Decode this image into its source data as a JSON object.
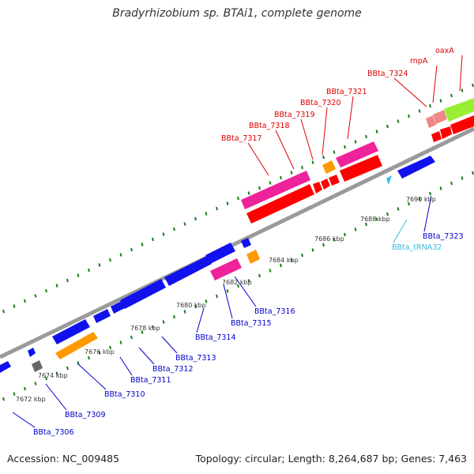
{
  "title": "Bradyrhizobium sp. BTAi1, complete genome",
  "footer": {
    "accession": "Accession: NC_009485",
    "summary": "Topology: circular; Length: 8,264,687 bp; Genes: 7,463"
  },
  "colors": {
    "backbone": "#9a9a9a",
    "tick": "#1a7a1a",
    "blue_label": "#0000cc",
    "red_label": "#dd0000",
    "cyan_label": "#33bbdd",
    "red_gene": "#ff0000",
    "blue_gene": "#1111ee",
    "magenta_gene": "#ee2299",
    "orange_gene": "#ff9900",
    "pink_gene": "#ee8888",
    "lime_gene": "#99ee33",
    "gray_gene": "#666666",
    "cyan_gene": "#33bbee"
  },
  "scale_labels": [
    "7672 kbp",
    "7674 kbp",
    "7676 kbp",
    "7678 kbp",
    "7680 kbp",
    "7682 kbp",
    "7684 kbp",
    "7686 kbp",
    "7688 kbp",
    "7690 kbp"
  ],
  "gene_labels": {
    "top": [
      "BBta_7317",
      "BBta_7318",
      "BBta_7319",
      "BBta_7320",
      "BBta_7321",
      "BBta_7324",
      "rnpA",
      "oaxA"
    ],
    "bottom": [
      "BBta_7306",
      "BBta_7309",
      "BBta_7310",
      "BBta_7311",
      "BBta_7312",
      "BBta_7313",
      "BBta_7314",
      "BBta_7315",
      "BBta_7316",
      "BBta_tRNA32",
      "BBta_7323"
    ]
  }
}
